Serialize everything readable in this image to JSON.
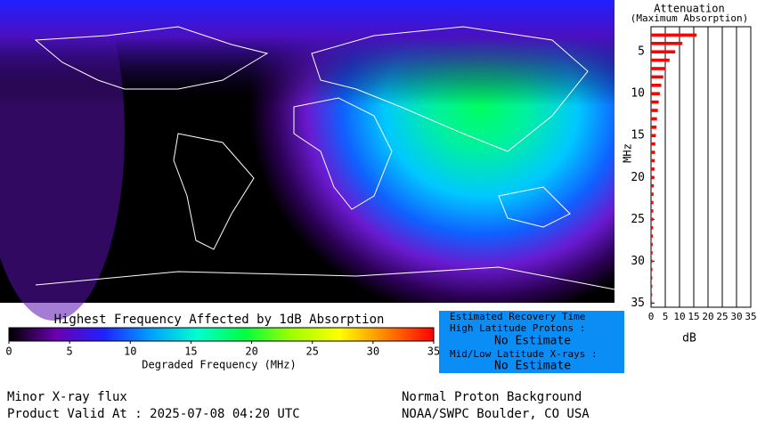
{
  "chart_data": [
    {
      "type": "colorbar",
      "title": "Highest Frequency Affected by 1dB Absorption",
      "x_label": "Degraded Frequency (MHz)",
      "colors": [
        "#000000",
        "#6a00b0",
        "#2020ff",
        "#00a0ff",
        "#00ffd0",
        "#00ff40",
        "#a0ff00",
        "#ffff00",
        "#ff8000",
        "#ff0000"
      ],
      "xlim": [
        0,
        35
      ],
      "xticks": [
        0,
        5,
        10,
        15,
        20,
        25,
        30,
        35
      ]
    },
    {
      "type": "hbar",
      "title": "Attenuation",
      "subtitle": "(Maximum Absorption)",
      "y_label": "MHz",
      "x_label": "dB",
      "color": "#ff0000",
      "y": [
        3,
        4,
        5,
        6,
        7,
        8,
        9,
        10,
        11,
        12,
        13,
        14,
        15,
        16,
        17,
        18,
        19,
        20,
        21,
        22,
        23,
        24,
        25,
        26,
        27,
        28,
        29,
        30,
        31,
        32,
        33,
        34,
        35
      ],
      "values": [
        16,
        11,
        8.5,
        6.5,
        5.2,
        4.3,
        3.6,
        3.1,
        2.7,
        2.4,
        2.1,
        1.9,
        1.7,
        1.5,
        1.4,
        1.3,
        1.2,
        1.1,
        1.0,
        0.9,
        0.85,
        0.8,
        0.75,
        0.7,
        0.65,
        0.6,
        0.55,
        0.5,
        0.5,
        0.45,
        0.45,
        0.4,
        0.4
      ],
      "xlim": [
        0,
        35
      ],
      "xticks": [
        0,
        5,
        10,
        15,
        20,
        25,
        30,
        35
      ],
      "ylim": [
        2,
        35.5
      ],
      "yticks": [
        5,
        10,
        15,
        20,
        25,
        30,
        35
      ]
    }
  ],
  "recovery": {
    "title": "Estimated Recovery Time",
    "high_label": "High Latitude Protons :",
    "high_value": "No Estimate",
    "low_label": "Mid/Low Latitude X-rays :",
    "low_value": "No Estimate"
  },
  "footer": {
    "left_1": "Minor X-ray flux",
    "left_2": "Product Valid At : 2025-07-08 04:20 UTC",
    "right_1": "Normal Proton Background",
    "right_2": "NOAA/SWPC Boulder, CO USA"
  }
}
